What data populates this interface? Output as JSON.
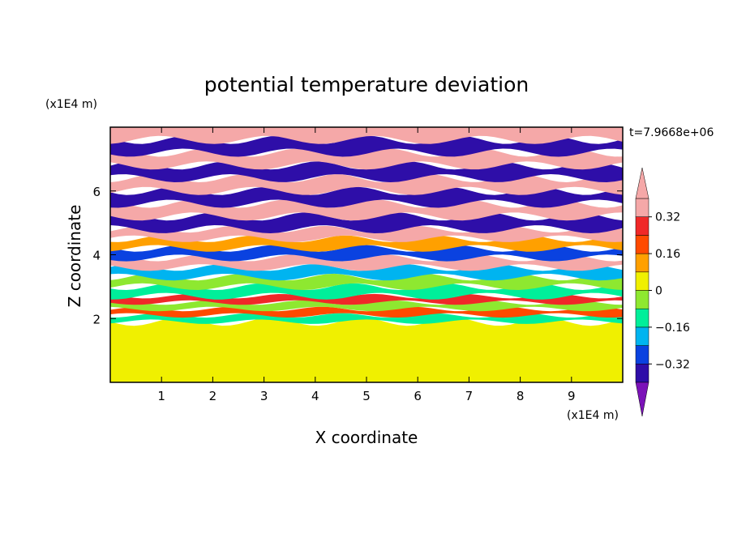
{
  "chart_data": {
    "type": "heatmap",
    "title": "potential temperature deviation",
    "xlabel": "X coordinate",
    "ylabel": "Z coordinate",
    "x_unit": "(x1E4 m)",
    "y_unit": "(x1E4 m)",
    "time_label": "t=7.9668e+06",
    "xlim": [
      0,
      10
    ],
    "ylim": [
      0,
      8
    ],
    "x_ticks": [
      1,
      2,
      3,
      4,
      5,
      6,
      7,
      8,
      9
    ],
    "y_ticks": [
      2,
      4,
      6
    ],
    "colorbar": {
      "levels": [
        -0.4,
        -0.32,
        -0.24,
        -0.16,
        -0.08,
        0,
        0.08,
        0.16,
        0.24,
        0.32,
        0.4
      ],
      "tick_labels": [
        "0.32",
        "0.16",
        "0",
        "−0.16",
        "−0.32"
      ],
      "tick_values": [
        0.32,
        0.16,
        0,
        -0.16,
        -0.32
      ],
      "colors": [
        "#7b12b8",
        "#2e0ea8",
        "#0a42e0",
        "#00b4f0",
        "#00ef9a",
        "#8ee830",
        "#f0f000",
        "#ffa000",
        "#ff4a00",
        "#f02828",
        "#f5a8a8"
      ],
      "extend": "both"
    },
    "bands": [
      {
        "z0": 0.0,
        "z1": 1.9,
        "level": 0
      },
      {
        "z0": 1.9,
        "z1": 2.1,
        "level": -0.16
      },
      {
        "z0": 2.1,
        "z1": 2.3,
        "level": 0.16
      },
      {
        "z0": 2.3,
        "z1": 2.5,
        "level": -0.08
      },
      {
        "z0": 2.5,
        "z1": 2.7,
        "level": 0.24
      },
      {
        "z0": 2.7,
        "z1": 3.0,
        "level": -0.16
      },
      {
        "z0": 3.0,
        "z1": 3.3,
        "level": -0.08
      },
      {
        "z0": 3.3,
        "z1": 3.6,
        "level": -0.24
      },
      {
        "z0": 3.6,
        "z1": 3.9,
        "level": 0.32
      },
      {
        "z0": 3.9,
        "z1": 4.2,
        "level": -0.32
      },
      {
        "z0": 4.2,
        "z1": 4.5,
        "level": 0.08
      },
      {
        "z0": 4.5,
        "z1": 4.8,
        "level": 0.4
      },
      {
        "z0": 4.8,
        "z1": 5.2,
        "level": -0.4
      },
      {
        "z0": 5.2,
        "z1": 5.6,
        "level": 0.4
      },
      {
        "z0": 5.6,
        "z1": 6.0,
        "level": -0.4
      },
      {
        "z0": 6.0,
        "z1": 6.4,
        "level": 0.4
      },
      {
        "z0": 6.4,
        "z1": 6.8,
        "level": -0.4
      },
      {
        "z0": 6.8,
        "z1": 7.2,
        "level": 0.4
      },
      {
        "z0": 7.2,
        "z1": 7.6,
        "level": -0.4
      },
      {
        "z0": 7.6,
        "z1": 8.0,
        "level": 0.4
      }
    ]
  }
}
